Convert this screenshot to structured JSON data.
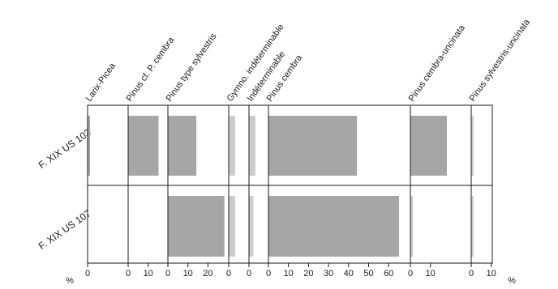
{
  "chart_data": {
    "type": "bar",
    "orientation": "horizontal",
    "layout": "multi-panel-percentage",
    "axis_unit_left": "%",
    "axis_unit_right": "%",
    "bar_color": "#a6a6a6",
    "light_bar_color": "#cccccc",
    "samples": [
      "F. XIX US 103",
      "F. XIX US 107"
    ],
    "taxa": [
      {
        "name": "Larix-Picea",
        "scale_max": 0,
        "ticks": [
          0
        ],
        "values": [
          1,
          0
        ],
        "shade": "dark"
      },
      {
        "name": "Pinus cf. P. cembra",
        "scale_max": 10,
        "ticks": [
          0,
          10
        ],
        "values": [
          15,
          0
        ],
        "shade": "dark"
      },
      {
        "name": "Pinus type sylvestris",
        "scale_max": 20,
        "ticks": [
          0,
          10,
          20
        ],
        "values": [
          14,
          28
        ],
        "shade": "dark"
      },
      {
        "name": "Gymno. indéterminable",
        "scale_max": 0,
        "ticks": [
          0
        ],
        "values": [
          3,
          3
        ],
        "shade": "light"
      },
      {
        "name": "Indéterminable",
        "scale_max": 0,
        "ticks": [
          0
        ],
        "values": [
          3,
          2
        ],
        "shade": "light"
      },
      {
        "name": "Pinus cembra",
        "scale_max": 60,
        "ticks": [
          0,
          10,
          20,
          30,
          40,
          50,
          60
        ],
        "values": [
          44,
          65
        ],
        "shade": "dark"
      },
      {
        "name": "Pinus cembra-uncinata",
        "scale_max": 10,
        "ticks": [
          0,
          10
        ],
        "values": [
          18,
          1
        ],
        "shade": "mixed"
      },
      {
        "name": "Pinus sylvestris-uncinata",
        "scale_max": 10,
        "ticks": [
          0,
          10
        ],
        "values": [
          1,
          1
        ],
        "shade": "light"
      }
    ]
  }
}
